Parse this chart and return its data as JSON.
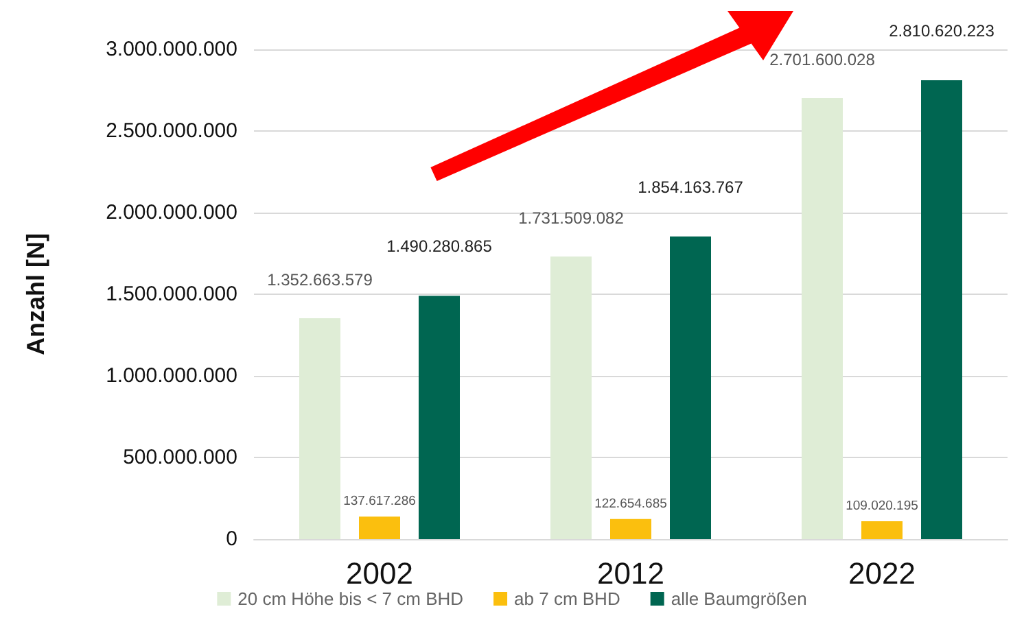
{
  "chart_data": {
    "type": "bar",
    "ylabel": "Anzahl [N]",
    "categories": [
      "2002",
      "2012",
      "2022"
    ],
    "series": [
      {
        "name": "20 cm Höhe bis < 7 cm BHD",
        "color": "#dfedd6",
        "values": [
          1352663579,
          1731509082,
          2701600028
        ],
        "value_labels": [
          "1.352.663.579",
          "1.731.509.082",
          "2.701.600.028"
        ]
      },
      {
        "name": "ab 7 cm BHD",
        "color": "#fbbf0e",
        "values": [
          137617286,
          122654685,
          109020195
        ],
        "value_labels": [
          "137.617.286",
          "122.654.685",
          "109.020.195"
        ]
      },
      {
        "name": "alle Baumgrößen",
        "color": "#006651",
        "values": [
          1490280865,
          1854163767,
          2810620223
        ],
        "value_labels": [
          "1.490.280.865",
          "1.854.163.767",
          "2.810.620.223"
        ]
      }
    ],
    "ylim": [
      0,
      3000000000
    ],
    "yticks": [
      {
        "value": 0,
        "label": "0"
      },
      {
        "value": 500000000,
        "label": "500.000.000"
      },
      {
        "value": 1000000000,
        "label": "1.000.000.000"
      },
      {
        "value": 1500000000,
        "label": "1.500.000.000"
      },
      {
        "value": 2000000000,
        "label": "2.000.000.000"
      },
      {
        "value": 2500000000,
        "label": "2.500.000.000"
      },
      {
        "value": 3000000000,
        "label": "3.000.000.000"
      }
    ],
    "grid": "y",
    "legend": "bottom"
  }
}
